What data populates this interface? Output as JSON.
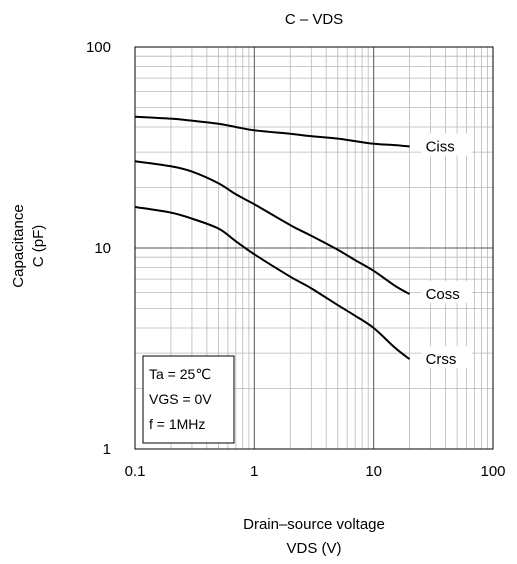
{
  "chart_data": {
    "type": "line",
    "title": "C – VDS",
    "xlabel_line1": "Drain–source voltage",
    "xlabel_line2": "VDS (V)",
    "ylabel_line1": "Capacitance",
    "ylabel_line2": "C (pF)",
    "x_scale": "log",
    "y_scale": "log",
    "xlim": [
      0.1,
      100
    ],
    "ylim": [
      1,
      100
    ],
    "x_ticks": [
      {
        "value": 0.1,
        "label": "0.1"
      },
      {
        "value": 1,
        "label": "1"
      },
      {
        "value": 10,
        "label": "10"
      },
      {
        "value": 100,
        "label": "100"
      }
    ],
    "y_ticks": [
      {
        "value": 1,
        "label": "1"
      },
      {
        "value": 10,
        "label": "10"
      },
      {
        "value": 100,
        "label": "100"
      }
    ],
    "grid": true,
    "legend": "none",
    "conditions": [
      "Ta = 25℃",
      "VGS = 0V",
      "f = 1MHz"
    ],
    "series": [
      {
        "name": "Ciss",
        "x": [
          0.1,
          0.2,
          0.3,
          0.5,
          0.7,
          1,
          2,
          3,
          5,
          7,
          10,
          15,
          20
        ],
        "y": [
          45,
          44,
          43,
          41.5,
          40,
          38.5,
          37,
          36,
          35,
          34,
          33,
          32.5,
          32
        ]
      },
      {
        "name": "Coss",
        "x": [
          0.1,
          0.2,
          0.3,
          0.5,
          0.7,
          1,
          2,
          3,
          5,
          7,
          10,
          15,
          20
        ],
        "y": [
          27,
          25.5,
          24,
          21,
          18.5,
          16.5,
          13,
          11.5,
          9.8,
          8.7,
          7.7,
          6.5,
          5.9
        ]
      },
      {
        "name": "Crss",
        "x": [
          0.1,
          0.2,
          0.3,
          0.5,
          0.7,
          1,
          2,
          3,
          5,
          7,
          10,
          15,
          20
        ],
        "y": [
          16,
          15,
          14,
          12.5,
          10.8,
          9.3,
          7.2,
          6.3,
          5.2,
          4.6,
          4,
          3.2,
          2.8
        ]
      }
    ]
  }
}
